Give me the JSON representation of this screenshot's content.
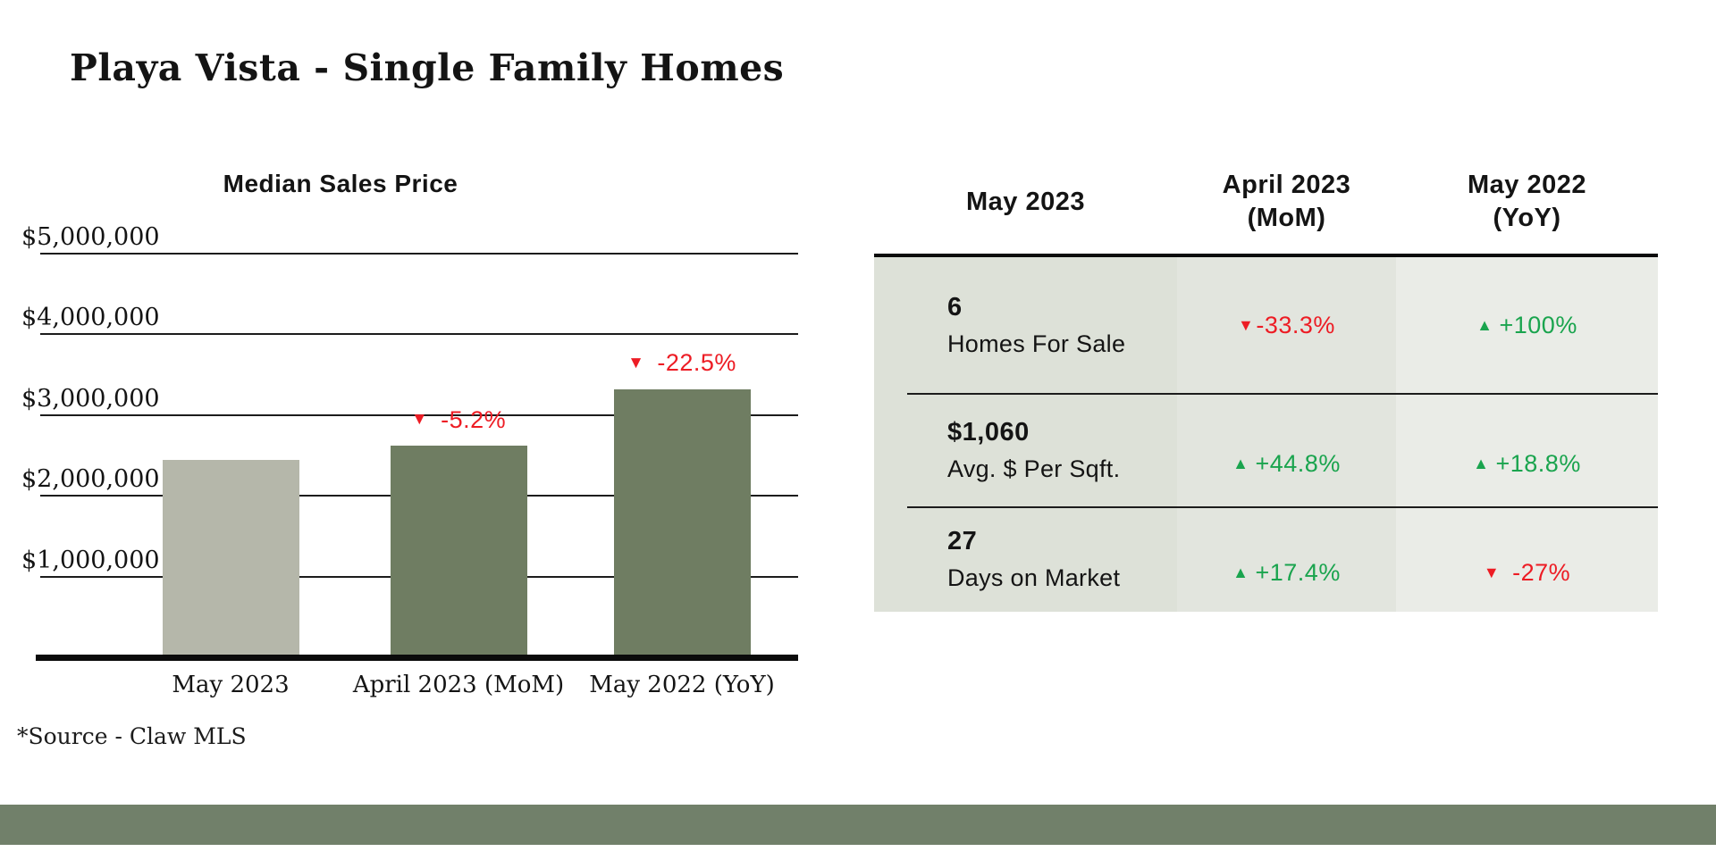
{
  "page": {
    "title": "Playa Vista - Single Family Homes",
    "source_note": "*Source - Claw MLS"
  },
  "colors": {
    "ink": "#141414",
    "negative_red": "#ed1c24",
    "positive_green": "#1aa44e",
    "bar_light": "#b5b7aa",
    "bar_dark": "#6f7d62",
    "footer_bar": "#71806a",
    "table_col1_bg": "#dde1d8",
    "table_col2_bg": "#e2e5de",
    "table_col3_bg": "#eaece7"
  },
  "icons": {
    "up_triangle": "▲",
    "down_triangle": "▼"
  },
  "chart_data": {
    "type": "bar",
    "title": "Median Sales Price",
    "categories": [
      "May 2023",
      "April 2023 (MoM)",
      "May 2022 (YoY)"
    ],
    "values": [
      2450000,
      2620000,
      3320000
    ],
    "values_note": "estimated from bar heights; no data labels shown",
    "bar_colors": [
      "#b5b7aa",
      "#6f7d62",
      "#6f7d62"
    ],
    "annotations": [
      {
        "bar_index": 1,
        "icon": "down-triangle",
        "text": "-5.2%",
        "color": "#ed1c24"
      },
      {
        "bar_index": 2,
        "icon": "down-triangle",
        "text": "-22.5%",
        "color": "#ed1c24"
      }
    ],
    "xlabel": "",
    "ylabel": "",
    "ylim": [
      0,
      5000000
    ],
    "yticks": [
      1000000,
      2000000,
      3000000,
      4000000,
      5000000
    ],
    "ytick_labels": [
      "$1,000,000",
      "$2,000,000",
      "$3,000,000",
      "$4,000,000",
      "$5,000,000"
    ],
    "grid": true,
    "legend": false
  },
  "table": {
    "columns": [
      {
        "line1": "May 2023",
        "line2": ""
      },
      {
        "line1": "April 2023",
        "line2": "(MoM)"
      },
      {
        "line1": "May 2022",
        "line2": "(YoY)"
      }
    ],
    "rows": [
      {
        "value": "6",
        "label": "Homes For Sale",
        "mom": {
          "text": "-33.3%",
          "direction": "down"
        },
        "yoy": {
          "text": "+100%",
          "direction": "up"
        }
      },
      {
        "value": "$1,060",
        "label": "Avg. $ Per Sqft.",
        "mom": {
          "text": "+44.8%",
          "direction": "up"
        },
        "yoy": {
          "text": "+18.8%",
          "direction": "up"
        }
      },
      {
        "value": "27",
        "label": "Days on Market",
        "mom": {
          "text": "+17.4%",
          "direction": "up"
        },
        "yoy": {
          "text": "-27%",
          "direction": "down"
        }
      }
    ]
  }
}
